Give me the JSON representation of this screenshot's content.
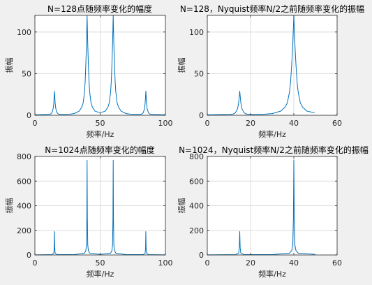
{
  "colors": {
    "background": "#f0f0f0",
    "axes": "#ffffff",
    "line": "#0072bd",
    "grid": "#dcdcdc",
    "text": "#262626"
  },
  "chart_data": [
    {
      "type": "line",
      "title": "N=128点随频率变化的幅度",
      "xlabel": "频率/Hz",
      "ylabel": "振幅",
      "xlim": [
        0,
        100
      ],
      "ylim": [
        0,
        120
      ],
      "xticks": [
        0,
        50,
        100
      ],
      "yticks": [
        0,
        50,
        100
      ],
      "grid": true,
      "series": [
        {
          "x": [
            0,
            10,
            12,
            13,
            14,
            14.5,
            15,
            15.5,
            16,
            17,
            18,
            20,
            25,
            30,
            34,
            36,
            37,
            38,
            38.5,
            39,
            39.5,
            40,
            40.5,
            41,
            41.5,
            42,
            43,
            44,
            46,
            50,
            54,
            56,
            57,
            58,
            58.5,
            59,
            59.5,
            60,
            60.5,
            61,
            61.5,
            62,
            63,
            64,
            66,
            70,
            75,
            80,
            82,
            83,
            84,
            84.5,
            85,
            85.5,
            86,
            87,
            88,
            90,
            100
          ],
          "y": [
            0.5,
            1,
            1.5,
            3,
            8,
            15,
            29,
            15,
            8,
            3,
            1.5,
            1,
            1,
            2,
            5,
            10,
            15,
            28,
            40,
            60,
            85,
            120,
            85,
            60,
            40,
            28,
            15,
            10,
            5,
            3,
            5,
            10,
            15,
            28,
            40,
            60,
            85,
            120,
            85,
            60,
            40,
            28,
            15,
            10,
            5,
            2,
            1,
            1,
            1.5,
            3,
            8,
            15,
            29,
            15,
            8,
            3,
            1.5,
            1,
            0.5
          ]
        }
      ]
    },
    {
      "type": "line",
      "title": "N=128，Nyquist频率N/2之前随频率变化的振幅",
      "xlabel": "频率/Hz",
      "ylabel": "振幅",
      "xlim": [
        0,
        60
      ],
      "ylim": [
        0,
        120
      ],
      "xticks": [
        0,
        20,
        40,
        60
      ],
      "yticks": [
        0,
        50,
        100
      ],
      "grid": true,
      "series": [
        {
          "x": [
            0,
            10,
            12,
            13,
            14,
            14.5,
            15,
            15.5,
            16,
            17,
            18,
            20,
            25,
            30,
            34,
            36,
            37,
            38,
            38.5,
            39,
            39.5,
            40,
            40.5,
            41,
            41.5,
            42,
            43,
            44,
            46,
            49.6
          ],
          "y": [
            0.5,
            1,
            1.5,
            3,
            8,
            15,
            29,
            15,
            8,
            3,
            1.5,
            1,
            1,
            2,
            5,
            10,
            15,
            28,
            40,
            60,
            85,
            120,
            85,
            60,
            40,
            28,
            15,
            10,
            5,
            3
          ]
        }
      ]
    },
    {
      "type": "line",
      "title": "N=1024点随频率变化的幅度",
      "xlabel": "频率/Hz",
      "ylabel": "振幅",
      "xlim": [
        0,
        100
      ],
      "ylim": [
        0,
        800
      ],
      "xticks": [
        0,
        50,
        100
      ],
      "yticks": [
        0,
        200,
        400,
        600,
        800
      ],
      "grid": true,
      "series": [
        {
          "x": [
            0,
            13,
            14.5,
            14.8,
            15,
            15.2,
            15.5,
            17,
            30,
            38,
            39,
            39.5,
            39.8,
            40,
            40.2,
            40.5,
            41,
            42,
            50,
            58,
            59,
            59.5,
            59.8,
            60,
            60.2,
            60.5,
            61,
            62,
            70,
            83,
            84.5,
            84.8,
            85,
            85.2,
            85.5,
            87,
            100
          ],
          "y": [
            1,
            3,
            15,
            60,
            190,
            60,
            15,
            3,
            3,
            15,
            35,
            80,
            300,
            770,
            300,
            80,
            35,
            15,
            5,
            15,
            35,
            80,
            300,
            770,
            300,
            80,
            35,
            15,
            3,
            3,
            15,
            60,
            190,
            60,
            15,
            3,
            1
          ]
        }
      ]
    },
    {
      "type": "line",
      "title": "N=1024，Nyquist频率N/2之前随频率变化的振幅",
      "xlabel": "频率/Hz",
      "ylabel": "振幅",
      "xlim": [
        0,
        60
      ],
      "ylim": [
        0,
        800
      ],
      "xticks": [
        0,
        20,
        40,
        60
      ],
      "yticks": [
        0,
        200,
        400,
        600,
        800
      ],
      "grid": true,
      "series": [
        {
          "x": [
            0,
            13,
            14.5,
            14.8,
            15,
            15.2,
            15.5,
            17,
            30,
            38,
            39,
            39.5,
            39.8,
            40,
            40.2,
            40.5,
            41,
            42,
            49.9
          ],
          "y": [
            1,
            3,
            15,
            60,
            190,
            60,
            15,
            3,
            3,
            15,
            35,
            80,
            300,
            770,
            300,
            80,
            35,
            15,
            5
          ]
        }
      ]
    }
  ]
}
